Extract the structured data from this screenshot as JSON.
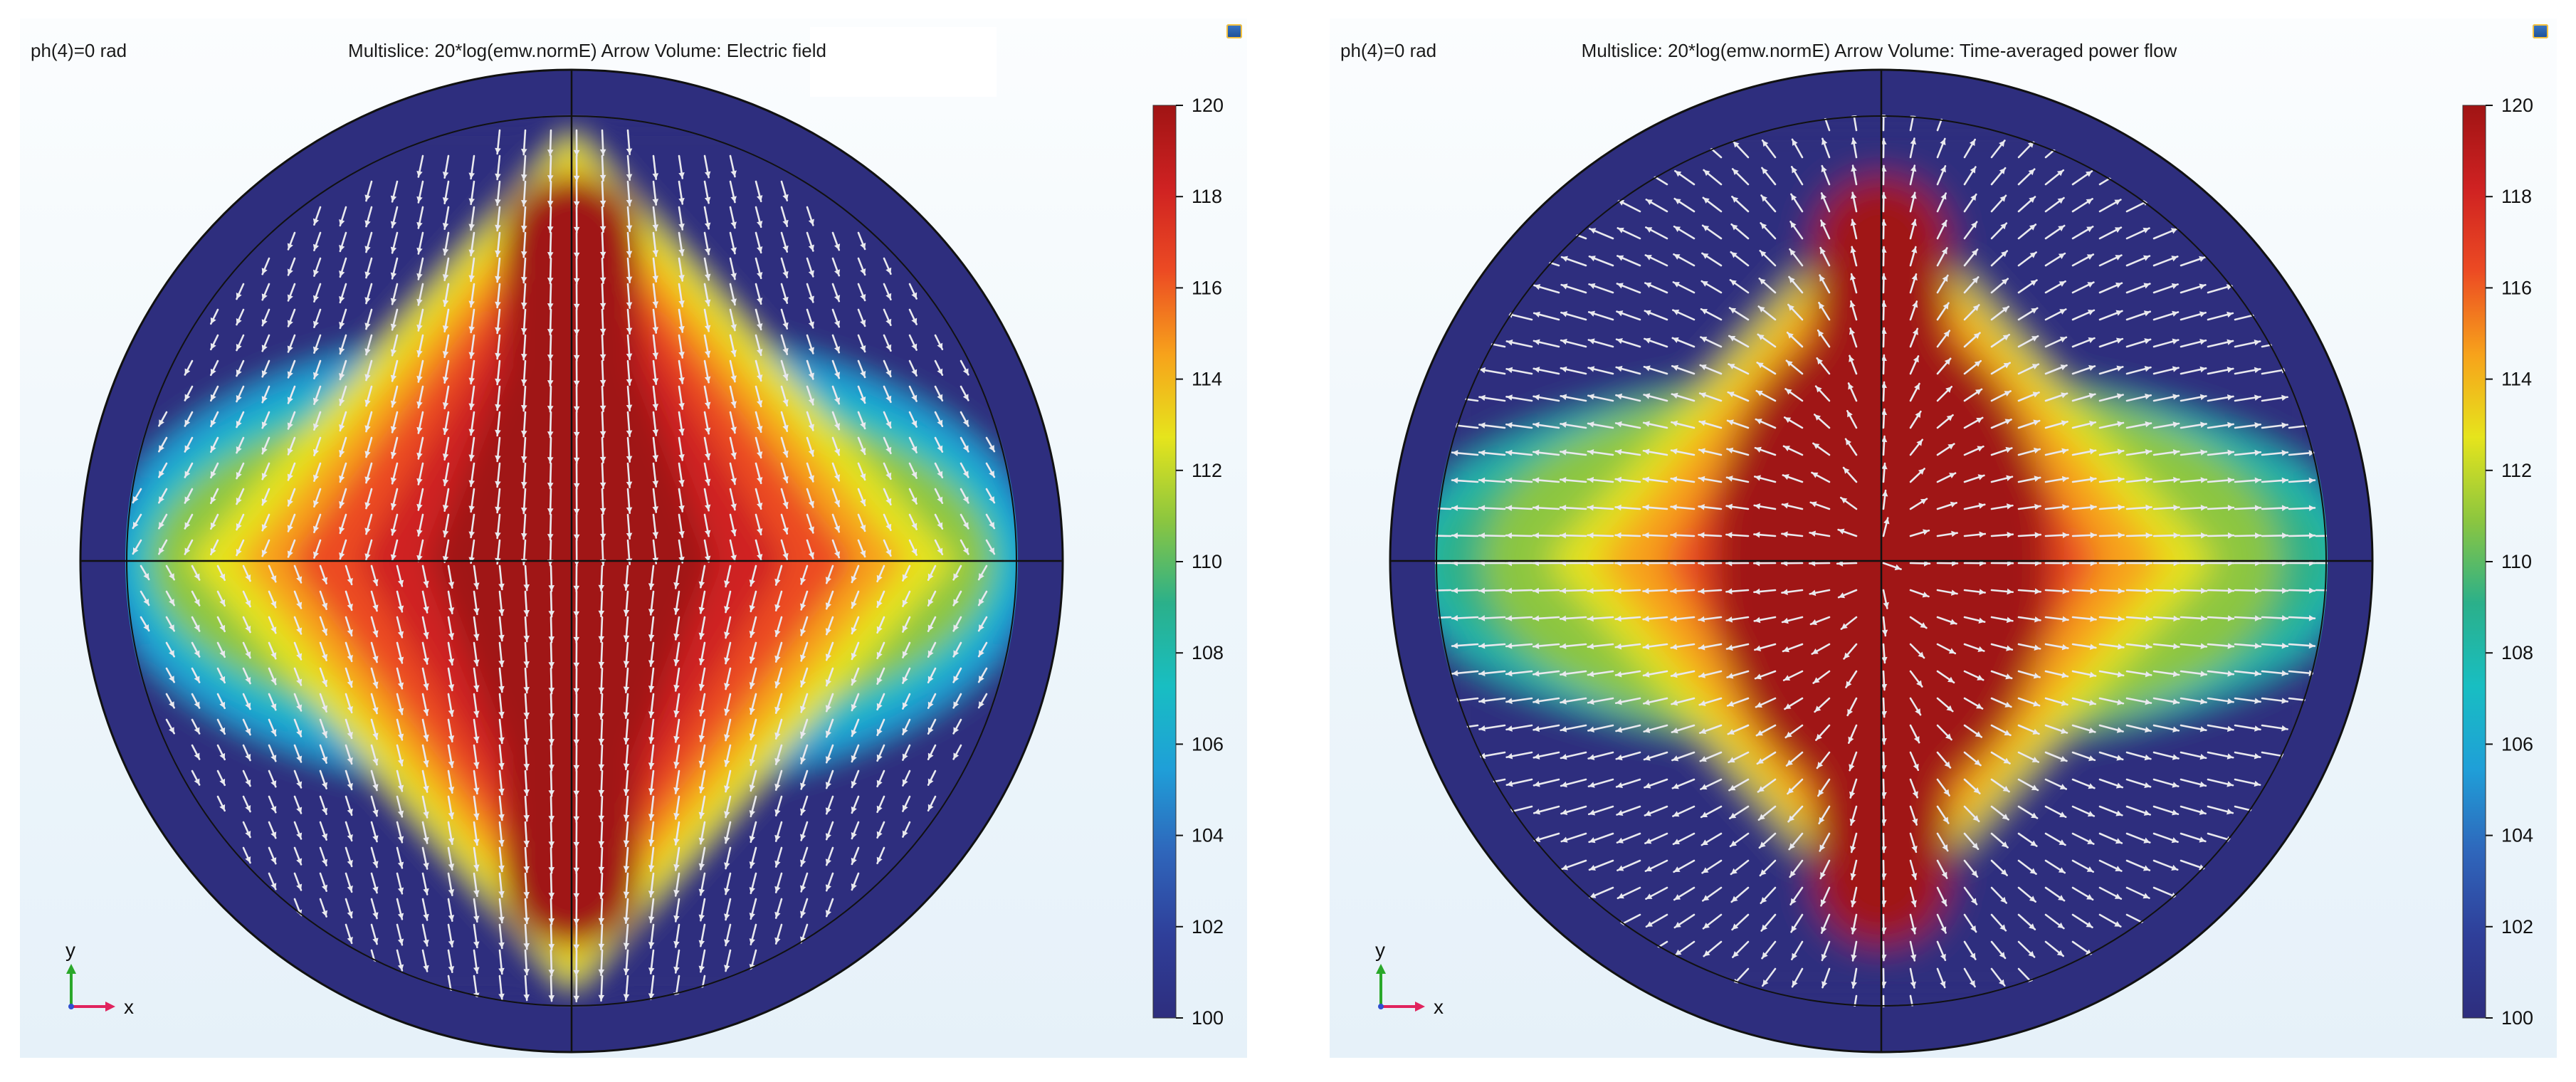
{
  "chart_data": [
    {
      "type": "heatmap",
      "ph_label": "ph(4)=0 rad",
      "title": "Multislice: 20*log(emw.normE)  Arrow Volume: Electric field",
      "arrow_field": "Electric field",
      "colorbar": {
        "min": 100,
        "max": 120,
        "ticks": [
          120,
          118,
          116,
          114,
          112,
          110,
          108,
          106,
          104,
          102,
          100
        ]
      },
      "axes": {
        "x_label": "x",
        "y_label": "y"
      },
      "colors": {
        "low": "#2e2e7e",
        "high": "#a01414"
      }
    },
    {
      "type": "heatmap",
      "ph_label": "ph(4)=0 rad",
      "title": "Multislice: 20*log(emw.normE)  Arrow Volume: Time-averaged power flow",
      "arrow_field": "Time-averaged power flow",
      "colorbar": {
        "min": 100,
        "max": 120,
        "ticks": [
          120,
          118,
          116,
          114,
          112,
          110,
          108,
          106,
          104,
          102,
          100
        ]
      },
      "axes": {
        "x_label": "x",
        "y_label": "y"
      },
      "colors": {
        "low": "#2e2e7e",
        "high": "#a01414"
      }
    }
  ]
}
